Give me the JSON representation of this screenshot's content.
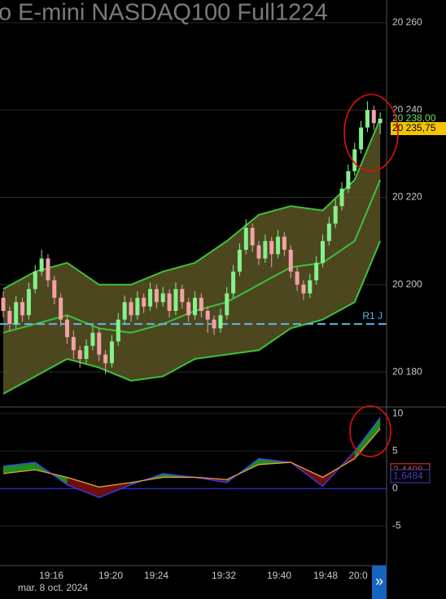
{
  "chart_data": {
    "type": "candlestick",
    "title": "o E-mini NASDAQ100 Full1224",
    "up_color": "#86f08a",
    "down_color": "#f2a2a6",
    "candles": [
      [
        20197,
        20198.5,
        20192.5,
        20194
      ],
      [
        20194,
        20195,
        20189.5,
        20191
      ],
      [
        20191,
        20197.5,
        20190,
        20196
      ],
      [
        20196,
        20197,
        20191.5,
        20193
      ],
      [
        20193,
        20200.5,
        20192,
        20199
      ],
      [
        20199,
        20204.5,
        20198,
        20203
      ],
      [
        20203,
        20208,
        20202,
        20206
      ],
      [
        20206,
        20207,
        20199.5,
        20201
      ],
      [
        20201,
        20202,
        20195.5,
        20197
      ],
      [
        20197,
        20198,
        20190.5,
        20192
      ],
      [
        20192,
        20193,
        20186.5,
        20188
      ],
      [
        20188,
        20189.5,
        20183,
        20185
      ],
      [
        20185,
        20186,
        20181,
        20183
      ],
      [
        20183,
        20187.5,
        20182,
        20186
      ],
      [
        20186,
        20190.5,
        20185,
        20189
      ],
      [
        20189,
        20190,
        20182.5,
        20184
      ],
      [
        20184,
        20185,
        20179.5,
        20182
      ],
      [
        20182,
        20188.5,
        20181,
        20187
      ],
      [
        20187,
        20193.5,
        20186,
        20192
      ],
      [
        20192,
        20197.5,
        20191,
        20196
      ],
      [
        20196,
        20197,
        20191.5,
        20193
      ],
      [
        20193,
        20198.5,
        20192,
        20197
      ],
      [
        20197,
        20198,
        20193.5,
        20195
      ],
      [
        20195,
        20200.5,
        20194,
        20199
      ],
      [
        20199,
        20200,
        20194.5,
        20196
      ],
      [
        20196,
        20199.5,
        20195,
        20198
      ],
      [
        20198,
        20199,
        20192.5,
        20194
      ],
      [
        20194,
        20200.5,
        20193,
        20199
      ],
      [
        20199,
        20200,
        20194.5,
        20196
      ],
      [
        20196,
        20197,
        20191.5,
        20193
      ],
      [
        20193,
        20198.5,
        20192,
        20197
      ],
      [
        20197,
        20198,
        20192.5,
        20194
      ],
      [
        20194,
        20195,
        20189,
        20192
      ],
      [
        20192,
        20193,
        20188.5,
        20190
      ],
      [
        20190,
        20194.5,
        20189,
        20193
      ],
      [
        20193,
        20199.5,
        20192,
        20198
      ],
      [
        20198,
        20204.5,
        20197,
        20203
      ],
      [
        20203,
        20209.5,
        20202,
        20208
      ],
      [
        20208,
        20215,
        20207,
        20213
      ],
      [
        20213,
        20214,
        20207.5,
        20209
      ],
      [
        20209,
        20210,
        20204.5,
        20206
      ],
      [
        20206,
        20211.5,
        20205,
        20210
      ],
      [
        20210,
        20211,
        20204,
        20207
      ],
      [
        20207,
        20212.5,
        20206,
        20211
      ],
      [
        20211,
        20212,
        20206.5,
        20208
      ],
      [
        20208,
        20209,
        20201.5,
        20203
      ],
      [
        20203,
        20204,
        20198.5,
        20200
      ],
      [
        20200,
        20201,
        20196.5,
        20198
      ],
      [
        20198,
        20202.5,
        20197,
        20201
      ],
      [
        20201,
        20206.5,
        20200,
        20205
      ],
      [
        20205,
        20211.5,
        20204,
        20210
      ],
      [
        20210,
        20215.5,
        20209,
        20214
      ],
      [
        20214,
        20219.5,
        20213,
        20218
      ],
      [
        20218,
        20223.5,
        20217,
        20222
      ],
      [
        20222,
        20227.5,
        20221,
        20226
      ],
      [
        20226,
        20232.5,
        20225,
        20231
      ],
      [
        20231,
        20237.5,
        20230,
        20236
      ],
      [
        20236,
        20242,
        20235,
        20240
      ],
      [
        20240,
        20241,
        20235.5,
        20237
      ],
      [
        20237,
        20239.5,
        20234.5,
        20238
      ]
    ],
    "band_x": [
      0,
      5,
      10,
      15,
      20,
      25,
      30,
      35,
      40,
      45,
      50,
      55,
      59
    ],
    "bands": {
      "line_color": "#3cc23c",
      "fill": "#5b5426",
      "upper": [
        20199,
        20203,
        20205,
        20200,
        20200,
        20203,
        20205,
        20210,
        20216,
        20218,
        20217,
        20224,
        20238
      ],
      "middle": [
        20189,
        20191,
        20193,
        20190,
        20189,
        20191,
        20194,
        20196,
        20200,
        20204,
        20205,
        20210,
        20224
      ],
      "lower": [
        20175,
        20179,
        20183,
        20181,
        20178,
        20179,
        20183,
        20184,
        20185,
        20190,
        20192,
        20196,
        20210
      ]
    },
    "reference_line": {
      "value": 20191,
      "label": "R1 J",
      "color": "#5ab8f0"
    },
    "ylim": [
      20172,
      20265.2
    ],
    "yticks": [
      {
        "value": 20260,
        "label": "20 260"
      },
      {
        "value": 20240,
        "label": "20 240"
      },
      {
        "value": 20220,
        "label": "20 220"
      },
      {
        "value": 20200,
        "label": "20 200"
      },
      {
        "value": 20180,
        "label": "20 180"
      }
    ],
    "price_tags": [
      {
        "value": 20238,
        "label": "20 238,00",
        "color": "#6fe06f",
        "background": "#000000"
      },
      {
        "value": 20235.75,
        "label": "20 235,75",
        "color": "#000000",
        "background": "#f5c400"
      }
    ],
    "oscillator": {
      "x": [
        0,
        5,
        10,
        15,
        20,
        25,
        30,
        35,
        40,
        45,
        50,
        55,
        59
      ],
      "series": [
        {
          "color": "#3b3bff",
          "values": [
            3,
            3.5,
            0.5,
            -1.2,
            0.5,
            2,
            1.5,
            0.8,
            4,
            3.5,
            0.3,
            5,
            9.5
          ]
        },
        {
          "color": "#e8a040",
          "values": [
            2,
            2.5,
            1.5,
            0.2,
            0.8,
            1.5,
            1.5,
            1.2,
            3.2,
            3.5,
            1.5,
            4,
            8
          ]
        }
      ],
      "fill_up": "#1f8a1f",
      "fill_down": "#6a1010",
      "ylim": [
        -10.3,
        10.9
      ],
      "yticks": [
        10,
        5,
        0,
        -5
      ],
      "value_tags": [
        {
          "value": 2.4408,
          "label": "2,4408",
          "color": "#e04040"
        },
        {
          "value": 1.6484,
          "label": "1,6484",
          "color": "#4040c0"
        }
      ]
    },
    "time_labels": [
      "19:16",
      "19:20",
      "19:24",
      "19:32",
      "19:40",
      "19:48",
      "20:0"
    ],
    "date": "mar. 8 oct. 2024",
    "button": "»"
  }
}
